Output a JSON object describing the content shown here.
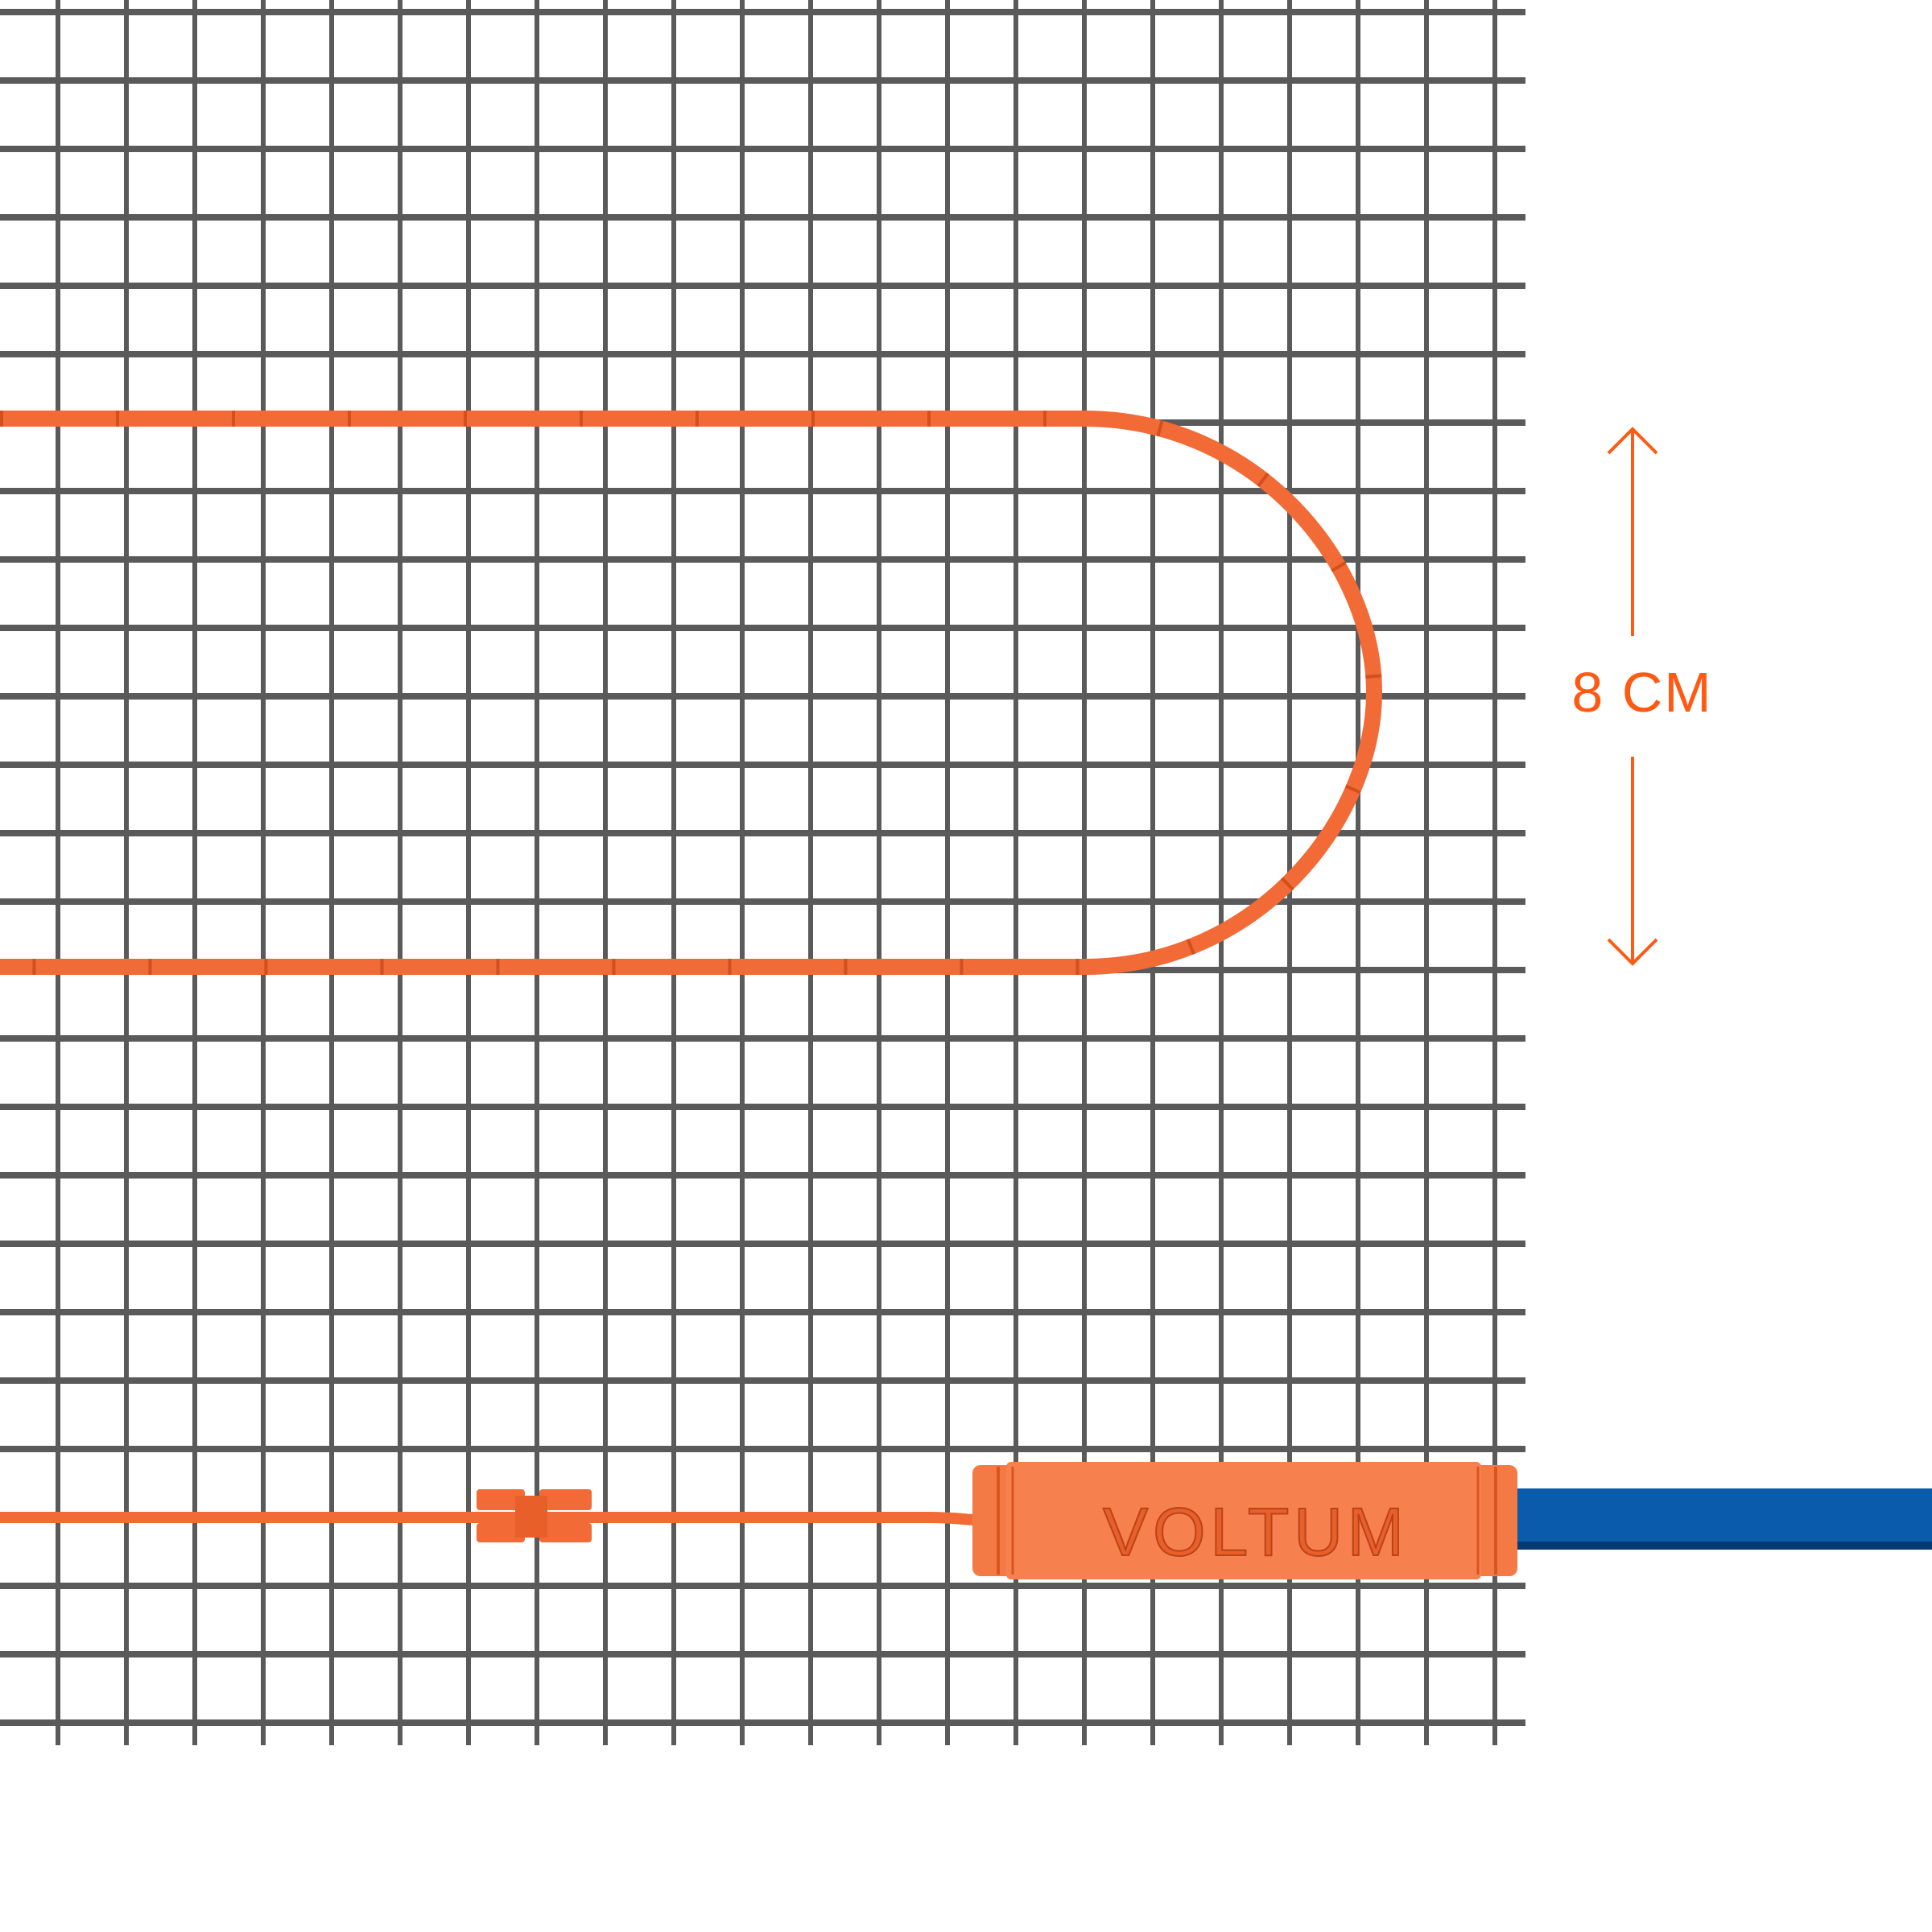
{
  "dimension": {
    "label": "8 CM",
    "value_cm": 8
  },
  "brand": {
    "logo_text": "VOLTUM"
  },
  "colors": {
    "cable": "#f26a35",
    "cable_dark": "#c9481c",
    "mesh": "#5a5a5a",
    "dimension_accent": "#ff5a14",
    "supply_cable": "#0a5bab",
    "background": "#ffffff"
  }
}
